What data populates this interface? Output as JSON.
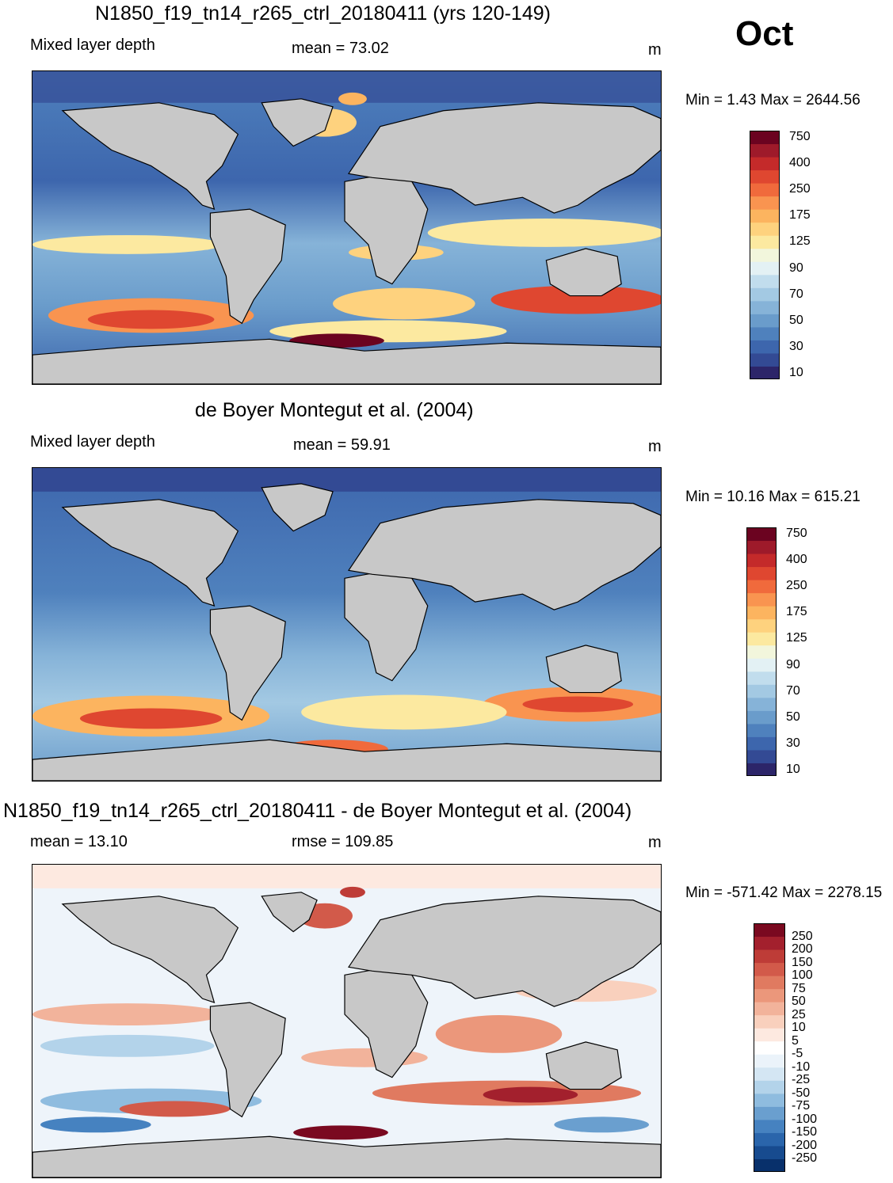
{
  "month": "Oct",
  "panels": [
    {
      "title": "N1850_f19_tn14_r265_ctrl_20180411 (yrs 120-149)",
      "left_label": "Mixed layer depth",
      "center_label": "mean =  73.02",
      "units": "m",
      "minmax": "Min =   1.43 Max = 2644.56"
    },
    {
      "title": "de Boyer Montegut et al. (2004)",
      "left_label": "Mixed layer depth",
      "center_label": "mean =  59.91",
      "units": "m",
      "minmax": "Min =  10.16 Max = 615.21"
    },
    {
      "title": "N1850_f19_tn14_r265_ctrl_20180411 - de Boyer Montegut et al. (2004)",
      "left_label": "mean =  13.10",
      "center_label": "rmse = 109.85",
      "units": "m",
      "minmax": "Min = -571.42 Max = 2278.15"
    }
  ],
  "colorbar_abs": {
    "colors": [
      "#2c2569",
      "#334a94",
      "#3d66ad",
      "#4f81bd",
      "#6a9ccb",
      "#86b3d8",
      "#a3c9e3",
      "#c1dded",
      "#e3f1f4",
      "#f2f6dc",
      "#fce9a0",
      "#fed27e",
      "#fcb45f",
      "#f99450",
      "#f06a3c",
      "#df4730",
      "#c42a2a",
      "#9e1a2a",
      "#6b0320"
    ],
    "labels": [
      "10",
      "30",
      "50",
      "70",
      "90",
      "125",
      "175",
      "250",
      "400",
      "750"
    ]
  },
  "colorbar_diff": {
    "colors": [
      "#08306b",
      "#174b8f",
      "#2a65ab",
      "#4682c0",
      "#6a9fcf",
      "#8fbcdf",
      "#b3d3ea",
      "#d4e6f3",
      "#ebf3fa",
      "#ffffff",
      "#fde9e0",
      "#f9d0bd",
      "#f2b39b",
      "#eb977b",
      "#e07a60",
      "#d25a4a",
      "#be3c37",
      "#a3202d",
      "#7a0920"
    ],
    "labels": [
      "-250",
      "-200",
      "-150",
      "-100",
      "-75",
      "-50",
      "-25",
      "-10",
      "-5",
      "5",
      "10",
      "25",
      "50",
      "75",
      "100",
      "150",
      "200",
      "250"
    ]
  }
}
